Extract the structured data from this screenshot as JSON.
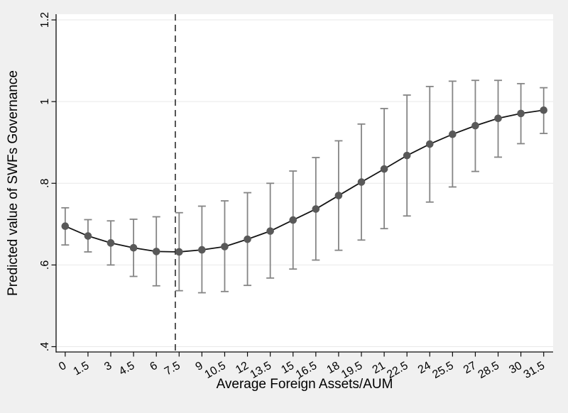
{
  "chart_data": {
    "type": "line",
    "title": "",
    "xlabel": "Average Foreign Assets/AUM",
    "ylabel": "Predicted value of SWFs Governance",
    "x": [
      0,
      1.5,
      3,
      4.5,
      6,
      7.5,
      9,
      10.5,
      12,
      13.5,
      15,
      16.5,
      18,
      19.5,
      21,
      22.5,
      24,
      25.5,
      27,
      28.5,
      30,
      31.5
    ],
    "y": [
      0.695,
      0.671,
      0.654,
      0.642,
      0.633,
      0.632,
      0.637,
      0.645,
      0.663,
      0.683,
      0.71,
      0.737,
      0.77,
      0.803,
      0.835,
      0.868,
      0.896,
      0.92,
      0.941,
      0.959,
      0.971,
      0.979
    ],
    "ci_low": [
      0.649,
      0.632,
      0.6,
      0.572,
      0.549,
      0.537,
      0.532,
      0.535,
      0.55,
      0.568,
      0.59,
      0.612,
      0.636,
      0.661,
      0.689,
      0.72,
      0.754,
      0.791,
      0.829,
      0.864,
      0.897,
      0.922
    ],
    "ci_high": [
      0.74,
      0.711,
      0.708,
      0.712,
      0.718,
      0.728,
      0.744,
      0.757,
      0.777,
      0.8,
      0.83,
      0.863,
      0.904,
      0.945,
      0.983,
      1.016,
      1.037,
      1.05,
      1.052,
      1.052,
      1.044,
      1.034
    ],
    "xtick_labels": [
      "0",
      "1.5",
      "3",
      "4.5",
      "6",
      "7.5",
      "9",
      "10.5",
      "12",
      "13.5",
      "15",
      "16.5",
      "18",
      "19.5",
      "21",
      "22.5",
      "24",
      "25.5",
      "27",
      "28.5",
      "30",
      "31.5"
    ],
    "ytick_values": [
      0.4,
      0.6,
      0.8,
      1.0,
      1.2
    ],
    "ytick_labels": [
      ".4",
      ".6",
      ".8",
      "1",
      "1.2"
    ],
    "xlim": [
      -0.6,
      32.12
    ],
    "ylim": [
      0.387,
      1.214
    ],
    "vline_x": 7.25,
    "grid": "horizontal-only",
    "legend": "none",
    "colors": {
      "figure_bg": "#f0f0f0",
      "plot_bg": "#ffffff",
      "grid": "#e9e9e9",
      "axis": "#0a0a0a",
      "line": "#141414",
      "marker": "#595959",
      "errorbar": "#858585",
      "vline": "#2a2a2a",
      "text": "#000000"
    }
  }
}
